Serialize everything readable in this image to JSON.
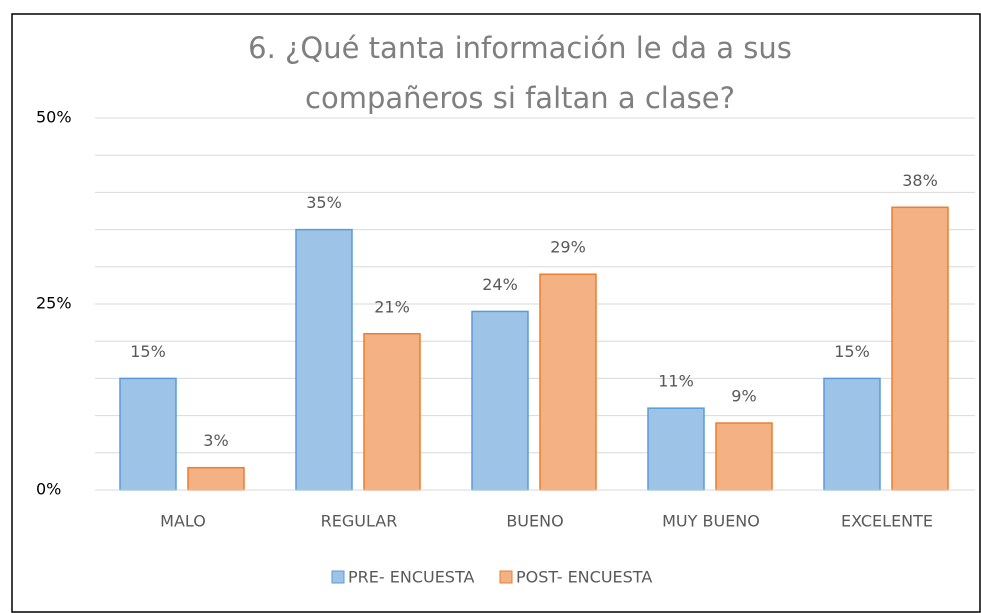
{
  "chart_data": {
    "type": "bar",
    "title": [
      "6. ¿Qué tanta información le da a sus",
      "compañeros si faltan a clase?"
    ],
    "categories": [
      "MALO",
      "REGULAR",
      "BUENO",
      "MUY BUENO",
      "EXCELENTE"
    ],
    "series": [
      {
        "name": "PRE- ENCUESTA",
        "color": "#9dc3e6",
        "values": [
          15,
          35,
          24,
          11,
          15
        ],
        "value_labels": [
          "15%",
          "35%",
          "24%",
          "11%",
          "15%"
        ]
      },
      {
        "name": "POST- ENCUESTA",
        "color": "#f4b183",
        "values": [
          3,
          21,
          29,
          9,
          38
        ],
        "value_labels": [
          "3%",
          "21%",
          "29%",
          "9%",
          "38%"
        ]
      }
    ],
    "ylim": [
      0,
      50
    ],
    "yticks": [
      {
        "value": 0,
        "label": "0%"
      },
      {
        "value": 25,
        "label": "25%"
      },
      {
        "value": 50,
        "label": "50%"
      }
    ],
    "minor_yticks": [
      5,
      10,
      15,
      20,
      30,
      35,
      40,
      45
    ],
    "grid": true,
    "legend": "bottom"
  }
}
